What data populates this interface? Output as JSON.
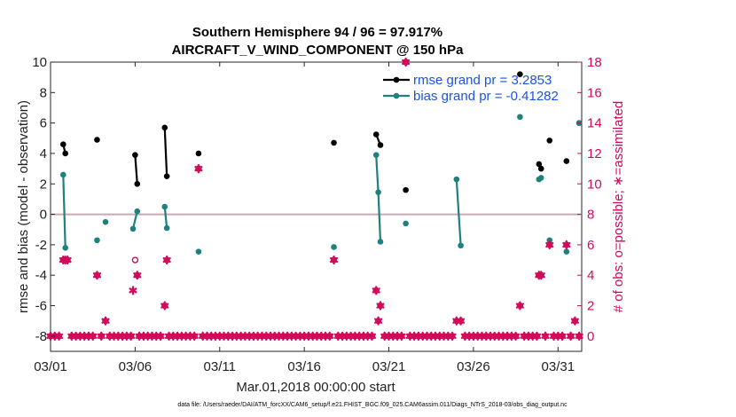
{
  "chart_data": {
    "type": "scatter",
    "title": "Southern Hemisphere 94 / 96 = 97.917%",
    "subtitle": "AIRCRAFT_V_WIND_COMPONENT @ 150 hPa",
    "xlabel": "Mar.01,2018 00:00:00 start",
    "ylabel": "rmse and bias (model - observation)",
    "y2label": "# of obs: o=possible; ∗=assimilated",
    "footer": "data file: /Users/raeder/DAI/ATM_forcXX/CAM6_setup/f.e21.FHIST_BGC.f09_025.CAM6assim.011/Diags_NTrS_2018-03/obs_diag_output.nc",
    "xlim": [
      0,
      31.4
    ],
    "ylim": [
      -9,
      10
    ],
    "y2lim": [
      -1,
      18
    ],
    "xticks": [
      0,
      5,
      10,
      15,
      20,
      25,
      30
    ],
    "xtick_labels": [
      "03/01",
      "03/06",
      "03/11",
      "03/16",
      "03/21",
      "03/26",
      "03/31"
    ],
    "yticks": [
      -8,
      -6,
      -4,
      -2,
      0,
      2,
      4,
      6,
      8,
      10
    ],
    "ytick_labels": [
      "-8",
      "-6",
      "-4",
      "-2",
      "0",
      "2",
      "4",
      "6",
      "8",
      "10"
    ],
    "y2ticks": [
      0,
      2,
      4,
      6,
      8,
      10,
      12,
      14,
      16,
      18
    ],
    "y2tick_labels": [
      "0",
      "2",
      "4",
      "6",
      "8",
      "10",
      "12",
      "14",
      "16",
      "18"
    ],
    "legend_position": "top-right",
    "colors": {
      "rmse": "#000000",
      "bias": "#1f8080",
      "obs": "#d10a5a",
      "zero_line": "#c9a9b5"
    },
    "series": [
      {
        "name": "rmse grand pr = 3.2853",
        "color": "#000000",
        "segments": [
          [
            [
              0.75,
              4.6
            ],
            [
              0.875,
              4.0
            ]
          ],
          [
            [
              2.75,
              4.9
            ]
          ],
          [
            [
              5.0,
              3.9
            ],
            [
              5.125,
              2.0
            ]
          ],
          [
            [
              6.75,
              5.7
            ],
            [
              6.875,
              2.5
            ]
          ],
          [
            [
              8.75,
              4.0
            ]
          ],
          [
            [
              16.75,
              4.7
            ]
          ],
          [
            [
              19.25,
              5.25
            ],
            [
              19.5,
              4.55
            ]
          ],
          [
            [
              21.0,
              1.6
            ]
          ],
          [
            [
              27.75,
              9.2
            ]
          ],
          [
            [
              28.875,
              3.3
            ],
            [
              29.0,
              3.0
            ]
          ],
          [
            [
              29.5,
              4.85
            ]
          ],
          [
            [
              30.5,
              3.5
            ]
          ],
          [
            [
              31.25,
              6.0
            ]
          ]
        ]
      },
      {
        "name": "bias grand pr = -0.41282",
        "color": "#1f8080",
        "segments": [
          [
            [
              0.75,
              2.6
            ],
            [
              0.875,
              -2.2
            ]
          ],
          [
            [
              2.75,
              -1.7
            ]
          ],
          [
            [
              3.25,
              -0.5
            ]
          ],
          [
            [
              4.875,
              -0.95
            ],
            [
              5.125,
              0.2
            ]
          ],
          [
            [
              6.75,
              0.5
            ],
            [
              6.875,
              -0.9
            ]
          ],
          [
            [
              8.75,
              -2.45
            ]
          ],
          [
            [
              16.75,
              -2.15
            ]
          ],
          [
            [
              19.25,
              3.9
            ],
            [
              19.375,
              1.45
            ],
            [
              19.5,
              -1.8
            ]
          ],
          [
            [
              21.0,
              -0.6
            ]
          ],
          [
            [
              24.0,
              2.3
            ],
            [
              24.25,
              -2.05
            ]
          ],
          [
            [
              27.75,
              6.4
            ]
          ],
          [
            [
              28.875,
              2.3
            ],
            [
              29.0,
              2.4
            ]
          ],
          [
            [
              29.5,
              -1.7
            ]
          ],
          [
            [
              30.5,
              -2.45
            ]
          ],
          [
            [
              31.25,
              6.0
            ]
          ]
        ]
      }
    ],
    "obs_possible": [
      [
        0,
        0
      ],
      [
        0.25,
        0
      ],
      [
        0.5,
        0
      ],
      [
        0.75,
        5
      ],
      [
        0.875,
        5
      ],
      [
        1.0,
        5
      ],
      [
        1.25,
        0
      ],
      [
        1.5,
        0
      ],
      [
        1.75,
        0
      ],
      [
        2.0,
        0
      ],
      [
        2.25,
        0
      ],
      [
        2.5,
        0
      ],
      [
        2.75,
        4
      ],
      [
        3.0,
        0
      ],
      [
        3.25,
        1
      ],
      [
        3.5,
        0
      ],
      [
        3.75,
        0
      ],
      [
        4.0,
        0
      ],
      [
        4.25,
        0
      ],
      [
        4.5,
        0
      ],
      [
        4.75,
        0
      ],
      [
        5.0,
        5
      ],
      [
        5.125,
        4
      ],
      [
        5.25,
        0
      ],
      [
        5.5,
        0
      ],
      [
        5.75,
        0
      ],
      [
        6.0,
        0
      ],
      [
        6.25,
        0
      ],
      [
        6.5,
        0
      ],
      [
        6.75,
        2
      ],
      [
        6.875,
        5
      ],
      [
        7.0,
        0
      ],
      [
        7.25,
        0
      ],
      [
        7.5,
        0
      ],
      [
        7.75,
        0
      ],
      [
        8.0,
        0
      ],
      [
        8.25,
        0
      ],
      [
        8.5,
        0
      ],
      [
        8.75,
        11
      ],
      [
        9.0,
        0
      ],
      [
        9.25,
        0
      ],
      [
        9.5,
        0
      ],
      [
        9.75,
        0
      ],
      [
        10.0,
        0
      ],
      [
        10.25,
        0
      ],
      [
        10.5,
        0
      ],
      [
        10.75,
        0
      ],
      [
        11.0,
        0
      ],
      [
        11.25,
        0
      ],
      [
        11.5,
        0
      ],
      [
        11.75,
        0
      ],
      [
        12.0,
        0
      ],
      [
        12.25,
        0
      ],
      [
        12.5,
        0
      ],
      [
        12.75,
        0
      ],
      [
        13.0,
        0
      ],
      [
        13.25,
        0
      ],
      [
        13.5,
        0
      ],
      [
        13.75,
        0
      ],
      [
        14.0,
        0
      ],
      [
        14.25,
        0
      ],
      [
        14.5,
        0
      ],
      [
        14.75,
        0
      ],
      [
        15.0,
        0
      ],
      [
        15.25,
        0
      ],
      [
        15.5,
        0
      ],
      [
        15.75,
        0
      ],
      [
        16.0,
        0
      ],
      [
        16.25,
        0
      ],
      [
        16.5,
        0
      ],
      [
        16.75,
        5
      ],
      [
        17.0,
        0
      ],
      [
        17.25,
        0
      ],
      [
        17.5,
        0
      ],
      [
        17.75,
        0
      ],
      [
        18.0,
        0
      ],
      [
        18.25,
        0
      ],
      [
        18.5,
        0
      ],
      [
        18.75,
        0
      ],
      [
        19.0,
        0
      ],
      [
        19.25,
        3
      ],
      [
        19.375,
        1
      ],
      [
        19.5,
        2
      ],
      [
        19.75,
        0
      ],
      [
        20.0,
        0
      ],
      [
        20.25,
        0
      ],
      [
        20.5,
        0
      ],
      [
        20.75,
        0
      ],
      [
        21.0,
        18
      ],
      [
        21.25,
        0
      ],
      [
        21.5,
        0
      ],
      [
        21.75,
        0
      ],
      [
        22.0,
        0
      ],
      [
        22.25,
        0
      ],
      [
        22.5,
        0
      ],
      [
        22.75,
        0
      ],
      [
        23.0,
        0
      ],
      [
        23.25,
        0
      ],
      [
        23.5,
        0
      ],
      [
        23.75,
        0
      ],
      [
        24.0,
        1
      ],
      [
        24.25,
        1
      ],
      [
        24.5,
        0
      ],
      [
        24.75,
        0
      ],
      [
        25.0,
        0
      ],
      [
        25.25,
        0
      ],
      [
        25.5,
        0
      ],
      [
        25.75,
        0
      ],
      [
        26.0,
        0
      ],
      [
        26.25,
        0
      ],
      [
        26.5,
        0
      ],
      [
        26.75,
        0
      ],
      [
        27.0,
        0
      ],
      [
        27.25,
        0
      ],
      [
        27.5,
        0
      ],
      [
        27.75,
        2
      ],
      [
        28.0,
        0
      ],
      [
        28.25,
        0
      ],
      [
        28.5,
        0
      ],
      [
        28.75,
        0
      ],
      [
        28.875,
        4
      ],
      [
        29.0,
        4
      ],
      [
        29.25,
        0
      ],
      [
        29.5,
        6
      ],
      [
        29.75,
        0
      ],
      [
        30.0,
        0
      ],
      [
        30.25,
        0
      ],
      [
        30.5,
        6
      ],
      [
        30.75,
        0
      ],
      [
        31.0,
        1
      ],
      [
        31.25,
        0
      ]
    ],
    "obs_assimilated": [
      [
        0,
        0
      ],
      [
        0.25,
        0
      ],
      [
        0.5,
        0
      ],
      [
        0.75,
        5
      ],
      [
        0.875,
        5
      ],
      [
        1.0,
        5
      ],
      [
        1.25,
        0
      ],
      [
        1.5,
        0
      ],
      [
        1.75,
        0
      ],
      [
        2.0,
        0
      ],
      [
        2.25,
        0
      ],
      [
        2.5,
        0
      ],
      [
        2.75,
        4
      ],
      [
        3.0,
        0
      ],
      [
        3.25,
        1
      ],
      [
        3.5,
        0
      ],
      [
        3.75,
        0
      ],
      [
        4.0,
        0
      ],
      [
        4.25,
        0
      ],
      [
        4.5,
        0
      ],
      [
        4.75,
        0
      ],
      [
        4.875,
        3
      ],
      [
        5.125,
        4
      ],
      [
        5.25,
        0
      ],
      [
        5.5,
        0
      ],
      [
        5.75,
        0
      ],
      [
        6.0,
        0
      ],
      [
        6.25,
        0
      ],
      [
        6.5,
        0
      ],
      [
        6.75,
        2
      ],
      [
        6.875,
        5
      ],
      [
        7.0,
        0
      ],
      [
        7.25,
        0
      ],
      [
        7.5,
        0
      ],
      [
        7.75,
        0
      ],
      [
        8.0,
        0
      ],
      [
        8.25,
        0
      ],
      [
        8.5,
        0
      ],
      [
        8.75,
        11
      ],
      [
        9.0,
        0
      ],
      [
        9.25,
        0
      ],
      [
        9.5,
        0
      ],
      [
        9.75,
        0
      ],
      [
        10.0,
        0
      ],
      [
        10.25,
        0
      ],
      [
        10.5,
        0
      ],
      [
        10.75,
        0
      ],
      [
        11.0,
        0
      ],
      [
        11.25,
        0
      ],
      [
        11.5,
        0
      ],
      [
        11.75,
        0
      ],
      [
        12.0,
        0
      ],
      [
        12.25,
        0
      ],
      [
        12.5,
        0
      ],
      [
        12.75,
        0
      ],
      [
        13.0,
        0
      ],
      [
        13.25,
        0
      ],
      [
        13.5,
        0
      ],
      [
        13.75,
        0
      ],
      [
        14.0,
        0
      ],
      [
        14.25,
        0
      ],
      [
        14.5,
        0
      ],
      [
        14.75,
        0
      ],
      [
        15.0,
        0
      ],
      [
        15.25,
        0
      ],
      [
        15.5,
        0
      ],
      [
        15.75,
        0
      ],
      [
        16.0,
        0
      ],
      [
        16.25,
        0
      ],
      [
        16.5,
        0
      ],
      [
        16.75,
        5
      ],
      [
        17.0,
        0
      ],
      [
        17.25,
        0
      ],
      [
        17.5,
        0
      ],
      [
        17.75,
        0
      ],
      [
        18.0,
        0
      ],
      [
        18.25,
        0
      ],
      [
        18.5,
        0
      ],
      [
        18.75,
        0
      ],
      [
        19.0,
        0
      ],
      [
        19.25,
        3
      ],
      [
        19.375,
        1
      ],
      [
        19.5,
        2
      ],
      [
        19.75,
        0
      ],
      [
        20.0,
        0
      ],
      [
        20.25,
        0
      ],
      [
        20.5,
        0
      ],
      [
        20.75,
        0
      ],
      [
        21.0,
        18
      ],
      [
        21.25,
        0
      ],
      [
        21.5,
        0
      ],
      [
        21.75,
        0
      ],
      [
        22.0,
        0
      ],
      [
        22.25,
        0
      ],
      [
        22.5,
        0
      ],
      [
        22.75,
        0
      ],
      [
        23.0,
        0
      ],
      [
        23.25,
        0
      ],
      [
        23.5,
        0
      ],
      [
        23.75,
        0
      ],
      [
        24.0,
        1
      ],
      [
        24.25,
        1
      ],
      [
        24.5,
        0
      ],
      [
        24.75,
        0
      ],
      [
        25.0,
        0
      ],
      [
        25.25,
        0
      ],
      [
        25.5,
        0
      ],
      [
        25.75,
        0
      ],
      [
        26.0,
        0
      ],
      [
        26.25,
        0
      ],
      [
        26.5,
        0
      ],
      [
        26.75,
        0
      ],
      [
        27.0,
        0
      ],
      [
        27.25,
        0
      ],
      [
        27.5,
        0
      ],
      [
        27.75,
        2
      ],
      [
        28.0,
        0
      ],
      [
        28.25,
        0
      ],
      [
        28.5,
        0
      ],
      [
        28.75,
        0
      ],
      [
        28.875,
        4
      ],
      [
        29.0,
        4
      ],
      [
        29.25,
        0
      ],
      [
        29.5,
        6
      ],
      [
        29.75,
        0
      ],
      [
        30.0,
        0
      ],
      [
        30.25,
        0
      ],
      [
        30.5,
        6
      ],
      [
        30.75,
        0
      ],
      [
        31.0,
        1
      ],
      [
        31.25,
        0
      ]
    ]
  }
}
